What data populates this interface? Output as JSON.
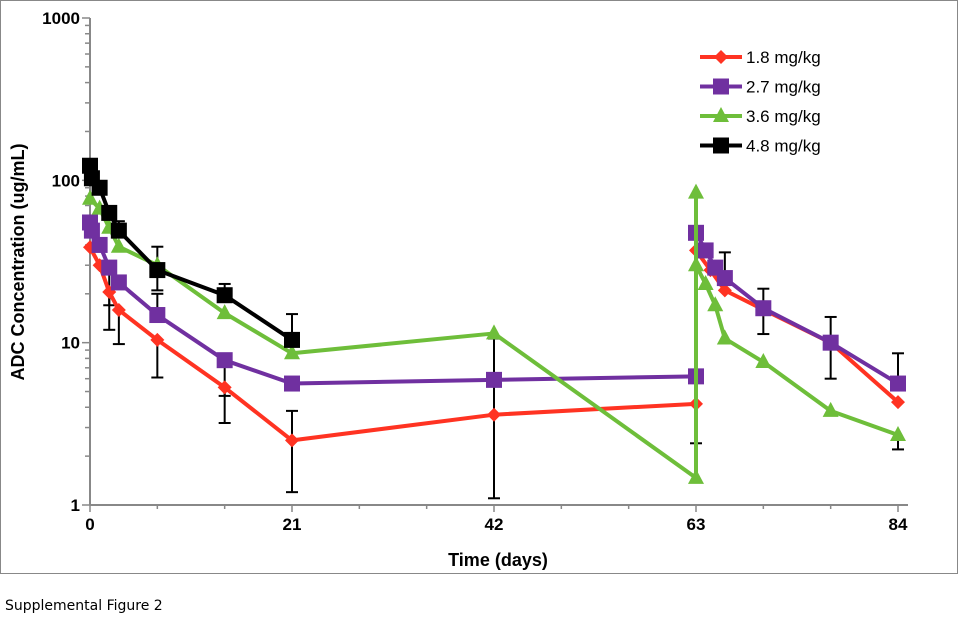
{
  "caption": "Supplemental Figure 2",
  "chart_data": {
    "type": "line",
    "title": "",
    "xlabel": "Time (days)",
    "ylabel": "ADC Concentration (ug/mL)",
    "xlim": [
      0,
      84
    ],
    "ylim": [
      1,
      1000
    ],
    "yscale": "log",
    "xticks": [
      "0",
      "21",
      "42",
      "63",
      "84"
    ],
    "yticks": [
      "1",
      "10",
      "100",
      "1000"
    ],
    "grid": false,
    "legend": "top-right",
    "series": [
      {
        "name": "1.8 mg/kg",
        "color": "#ff3322",
        "marker": "diamond",
        "x": [
          0,
          1,
          2,
          3,
          7,
          14,
          21,
          42,
          63,
          63,
          64.5,
          66,
          70,
          77,
          84
        ],
        "y": [
          38.7,
          30,
          20.5,
          15.9,
          10.4,
          5.3,
          2.5,
          3.6,
          4.2,
          37,
          28,
          21,
          16,
          10,
          4.3
        ],
        "err_low": [
          null,
          null,
          12,
          9.8,
          6.1,
          3.2,
          1.2,
          1.1,
          2.4,
          null,
          null,
          null,
          null,
          6,
          null
        ],
        "err_high": [
          null,
          null,
          null,
          null,
          null,
          null,
          3.8,
          10.6,
          null,
          null,
          null,
          null,
          null,
          null,
          null
        ]
      },
      {
        "name": "2.7 mg/kg",
        "color": "#7030a0",
        "marker": "square",
        "x": [
          0,
          0.2,
          1,
          2,
          3,
          7,
          14,
          21,
          42,
          63,
          63,
          64,
          65,
          66,
          70,
          77,
          84
        ],
        "y": [
          55,
          49,
          40,
          29,
          23.5,
          14.8,
          7.8,
          5.6,
          5.9,
          6.2,
          47.5,
          37,
          29,
          25,
          16.3,
          10,
          5.6
        ],
        "err_low": [
          null,
          null,
          null,
          17,
          null,
          null,
          4.7,
          null,
          null,
          null,
          null,
          null,
          null,
          null,
          11.3,
          null,
          null
        ],
        "err_high": [
          null,
          null,
          null,
          null,
          null,
          20,
          null,
          null,
          null,
          null,
          null,
          null,
          null,
          36,
          21.5,
          14.4,
          8.6
        ]
      },
      {
        "name": "3.6 mg/kg",
        "color": "#6ebe3a",
        "marker": "triangle",
        "x": [
          0,
          1,
          2,
          3,
          7,
          14,
          21,
          42,
          63,
          63,
          63,
          64,
          65,
          66,
          70,
          77,
          84
        ],
        "y": [
          77,
          67,
          51,
          39,
          30,
          15.2,
          8.6,
          11.4,
          1.47,
          84,
          30,
          23,
          17,
          10.6,
          7.6,
          3.8,
          2.7
        ],
        "err_low": [
          null,
          null,
          null,
          null,
          null,
          null,
          null,
          null,
          null,
          null,
          null,
          null,
          null,
          null,
          null,
          null,
          2.2
        ],
        "err_high": [
          null,
          null,
          null,
          null,
          null,
          null,
          null,
          null,
          null,
          null,
          null,
          null,
          null,
          null,
          null,
          null,
          null
        ]
      },
      {
        "name": "4.8 mg/kg",
        "color": "#000000",
        "marker": "square",
        "x": [
          0,
          0.2,
          1,
          2,
          3,
          7,
          14,
          21
        ],
        "y": [
          123,
          103,
          90,
          63,
          49,
          28,
          19.6,
          10.4
        ],
        "err_low": [
          null,
          null,
          null,
          null,
          null,
          21,
          null,
          null
        ],
        "err_high": [
          null,
          null,
          null,
          null,
          56,
          39,
          23,
          15
        ]
      }
    ]
  }
}
